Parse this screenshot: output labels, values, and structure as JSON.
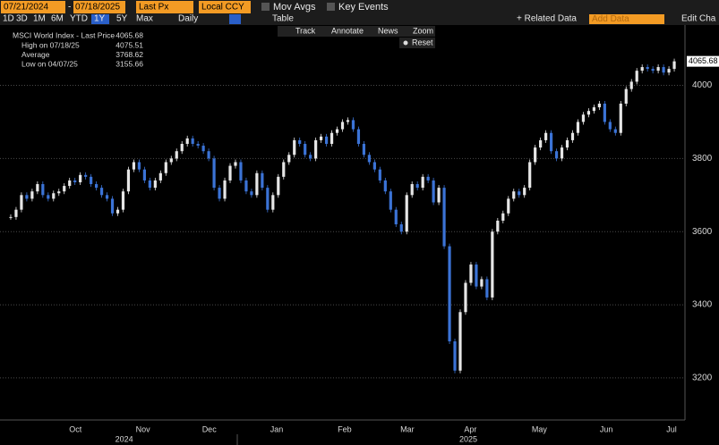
{
  "toolbar": {
    "start_date": "07/21/2024",
    "separator": "-",
    "end_date": "07/18/2025",
    "field": "Last Px",
    "currency": "Local CCY",
    "mov_avgs": "Mov Avgs",
    "key_events": "Key Events",
    "ranges": [
      "1D",
      "3D",
      "1M",
      "6M",
      "YTD",
      "1Y",
      "5Y",
      "Max"
    ],
    "active_range": 5,
    "frequency": "Daily",
    "table": "Table",
    "related": "+ Related Data",
    "add_data": "Add Data",
    "edit": "Edit Cha",
    "tools": [
      "Track",
      "Annotate",
      "News",
      "Zoom"
    ],
    "reset": "Reset"
  },
  "legend": {
    "title": "MSCI World Index - Last Price",
    "items": [
      {
        "label": "High on 07/18/25",
        "value": "4075.51"
      },
      {
        "label": "Average",
        "value": "3768.62"
      },
      {
        "label": "Low on 04/07/25",
        "value": "3155.66"
      }
    ]
  },
  "chart_data": {
    "type": "candlestick",
    "up_color": "#e6e6e6",
    "down_color": "#3b73d6",
    "values": [
      3640,
      3660,
      3700,
      3690,
      3710,
      3730,
      3700,
      3690,
      3705,
      3710,
      3725,
      3740,
      3735,
      3755,
      3750,
      3730,
      3720,
      3700,
      3690,
      3650,
      3660,
      3710,
      3770,
      3790,
      3770,
      3740,
      3720,
      3740,
      3760,
      3790,
      3800,
      3820,
      3840,
      3855,
      3840,
      3835,
      3820,
      3800,
      3720,
      3690,
      3740,
      3780,
      3790,
      3740,
      3710,
      3700,
      3760,
      3720,
      3660,
      3700,
      3750,
      3790,
      3810,
      3850,
      3840,
      3810,
      3800,
      3850,
      3860,
      3840,
      3870,
      3880,
      3900,
      3905,
      3880,
      3840,
      3810,
      3790,
      3770,
      3740,
      3710,
      3660,
      3620,
      3600,
      3700,
      3730,
      3720,
      3750,
      3740,
      3680,
      3720,
      3560,
      3300,
      3220,
      3380,
      3460,
      3510,
      3450,
      3470,
      3420,
      3600,
      3630,
      3650,
      3690,
      3710,
      3700,
      3720,
      3790,
      3830,
      3850,
      3870,
      3820,
      3800,
      3830,
      3850,
      3870,
      3900,
      3920,
      3930,
      3940,
      3950,
      3900,
      3880,
      3870,
      3950,
      3990,
      4010,
      4040,
      4050,
      4045,
      4040,
      4050,
      4035,
      4045,
      4065.68
    ],
    "xlim": [
      -1,
      126
    ],
    "xticks": [
      {
        "value": 12.1,
        "label": "Oct"
      },
      {
        "value": 24.7,
        "label": "Nov"
      },
      {
        "value": 37.1,
        "label": "Dec"
      },
      {
        "value": 49.7,
        "label": "Jan"
      },
      {
        "value": 62.4,
        "label": "Feb"
      },
      {
        "value": 74.1,
        "label": "Mar"
      },
      {
        "value": 85.9,
        "label": "Apr"
      },
      {
        "value": 98.8,
        "label": "May"
      },
      {
        "value": 111.3,
        "label": "Jun"
      },
      {
        "value": 123.5,
        "label": "Jul"
      }
    ],
    "years": [
      {
        "value": 21.2,
        "label": "2024"
      },
      {
        "value": 85.5,
        "label": "2025"
      }
    ],
    "ylim": [
      3085,
      4165
    ],
    "yticks": [
      3200,
      3400,
      3600,
      3800,
      4000
    ],
    "grid": true
  }
}
